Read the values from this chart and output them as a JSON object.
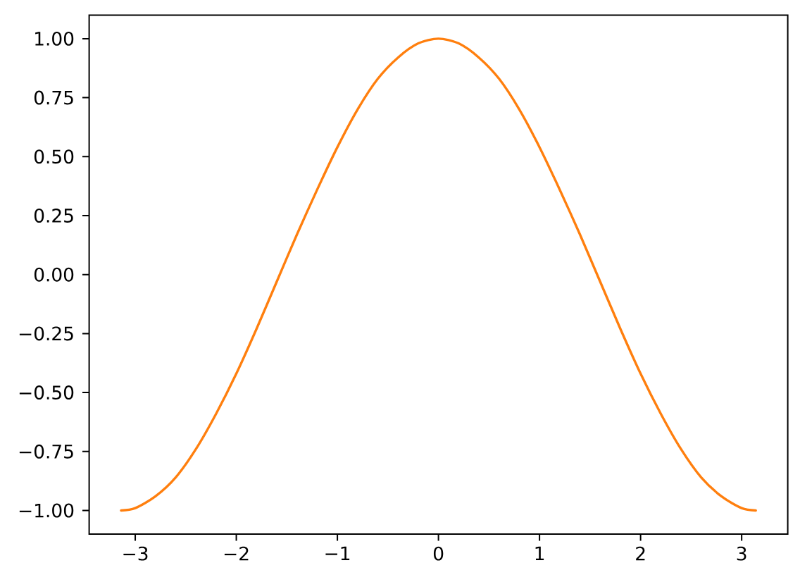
{
  "chart_data": {
    "type": "line",
    "x": [
      -3.14,
      -3.0,
      -2.8,
      -2.6,
      -2.4,
      -2.2,
      -2.0,
      -1.8,
      -1.6,
      -1.4,
      -1.2,
      -1.0,
      -0.8,
      -0.6,
      -0.4,
      -0.2,
      0.0,
      0.2,
      0.4,
      0.6,
      0.8,
      1.0,
      1.2,
      1.4,
      1.6,
      1.8,
      2.0,
      2.2,
      2.4,
      2.6,
      2.8,
      3.0,
      3.14
    ],
    "series": [
      {
        "color": "#ff7f0e",
        "values": [
          -1.0,
          -0.99,
          -0.94,
          -0.86,
          -0.74,
          -0.59,
          -0.42,
          -0.23,
          -0.03,
          0.17,
          0.36,
          0.54,
          0.7,
          0.83,
          0.92,
          0.98,
          1.0,
          0.98,
          0.92,
          0.83,
          0.7,
          0.54,
          0.36,
          0.17,
          -0.03,
          -0.23,
          -0.42,
          -0.59,
          -0.74,
          -0.86,
          -0.94,
          -0.99,
          -1.0
        ]
      }
    ],
    "xlim": [
      -3.456,
      3.456
    ],
    "ylim": [
      -1.1,
      1.1
    ],
    "xticks": [
      {
        "value": -3,
        "label": "−3"
      },
      {
        "value": -2,
        "label": "−2"
      },
      {
        "value": -1,
        "label": "−1"
      },
      0,
      1,
      2,
      3
    ],
    "yticks": [
      {
        "value": -1,
        "label": "−1.00"
      },
      {
        "value": -0.75,
        "label": "−0.75"
      },
      {
        "value": -0.5,
        "label": "−0.50"
      },
      {
        "value": -0.25,
        "label": "−0.25"
      },
      {
        "value": 0,
        "label": "0.00"
      },
      {
        "value": 0.25,
        "label": "0.25"
      },
      {
        "value": 0.5,
        "label": "0.50"
      },
      {
        "value": 0.75,
        "label": "0.75"
      },
      {
        "value": 1,
        "label": "1.00"
      }
    ]
  }
}
